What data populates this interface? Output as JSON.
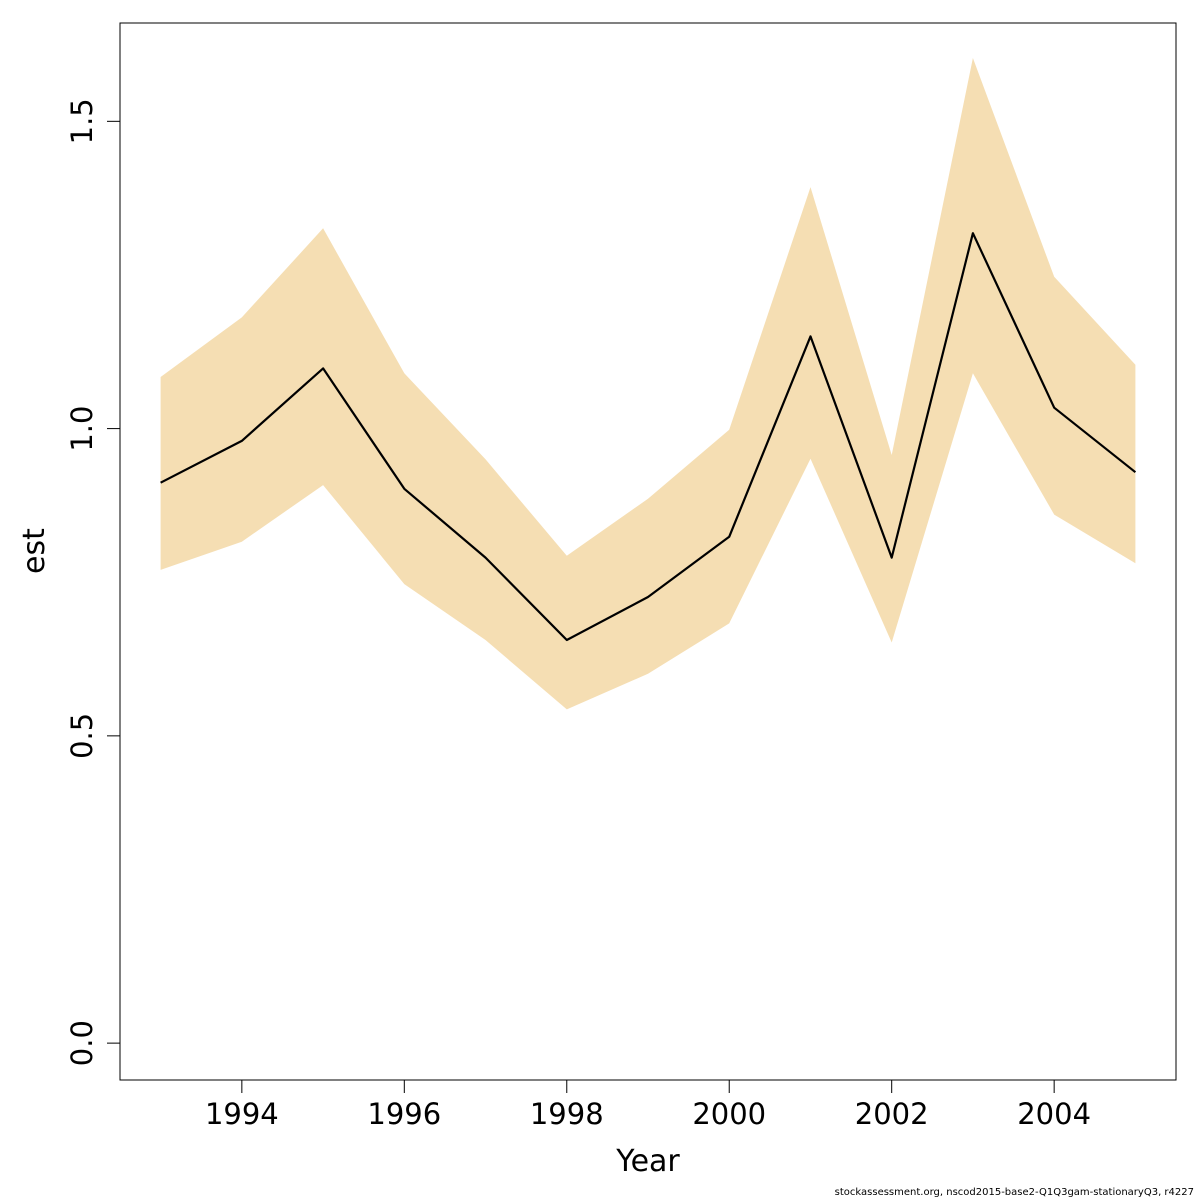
{
  "chart_data": {
    "type": "line",
    "title": "",
    "xlabel": "Year",
    "ylabel": "est",
    "xlim": [
      1992.5,
      2005.5
    ],
    "ylim": [
      -0.06,
      1.66
    ],
    "x_ticks": [
      1994,
      1996,
      1998,
      2000,
      2002,
      2004
    ],
    "y_ticks": [
      0.0,
      0.5,
      1.0,
      1.5
    ],
    "y_tick_labels": [
      "0.0",
      "0.5",
      "1.0",
      "1.5"
    ],
    "grid": false,
    "band_color": "#F5DEB3",
    "line_color": "#000000",
    "series": [
      {
        "x": [
          1993,
          1994,
          1995,
          1996,
          1997,
          1998,
          1999,
          2000,
          2001,
          2002,
          2003,
          2004,
          2005
        ],
        "values": [
          0.912,
          0.98,
          1.098,
          0.902,
          0.79,
          0.656,
          0.726,
          0.824,
          1.15,
          0.79,
          1.318,
          1.034,
          0.929
        ],
        "lower": [
          0.77,
          0.816,
          0.908,
          0.747,
          0.656,
          0.543,
          0.601,
          0.683,
          0.951,
          0.652,
          1.09,
          0.86,
          0.781
        ],
        "upper": [
          1.084,
          1.181,
          1.326,
          1.09,
          0.95,
          0.793,
          0.886,
          0.998,
          1.393,
          0.957,
          1.603,
          1.247,
          1.104
        ]
      }
    ]
  },
  "credit": "stockassessment.org, nscod2015-base2-Q1Q3gam-stationaryQ3, r4227"
}
